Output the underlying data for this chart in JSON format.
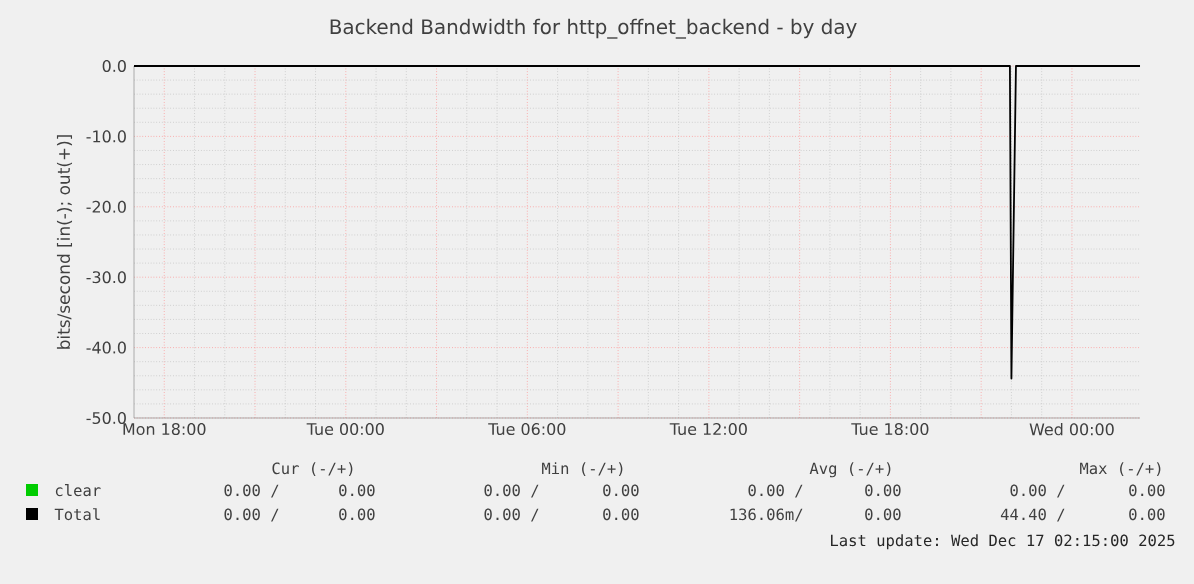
{
  "chart_data": {
    "type": "line",
    "title": "Backend Bandwidth for http_offnet_backend - by day",
    "ylabel": "bits/second [in(-); out(+)]",
    "xlim": [
      "2025-12-15T17:00",
      "2025-12-17T02:15"
    ],
    "ylim": [
      -50,
      0
    ],
    "xticks": [
      {
        "value": "2025-12-15T18:00",
        "label": "Mon 18:00"
      },
      {
        "value": "2025-12-15T21:00",
        "label": null
      },
      {
        "value": "2025-12-16T00:00",
        "label": "Tue 00:00"
      },
      {
        "value": "2025-12-16T03:00",
        "label": null
      },
      {
        "value": "2025-12-16T06:00",
        "label": "Tue 06:00"
      },
      {
        "value": "2025-12-16T09:00",
        "label": null
      },
      {
        "value": "2025-12-16T12:00",
        "label": "Tue 12:00"
      },
      {
        "value": "2025-12-16T15:00",
        "label": null
      },
      {
        "value": "2025-12-16T18:00",
        "label": "Tue 18:00"
      },
      {
        "value": "2025-12-16T21:00",
        "label": null
      },
      {
        "value": "2025-12-17T00:00",
        "label": "Wed 00:00"
      }
    ],
    "yticks": [
      {
        "value": -50,
        "label": "-50.0"
      },
      {
        "value": -40,
        "label": "-40.0"
      },
      {
        "value": -30,
        "label": "-30.0"
      },
      {
        "value": -20,
        "label": "-20.0"
      },
      {
        "value": -10,
        "label": "-10.0"
      },
      {
        "value": 0,
        "label": "0.0"
      }
    ],
    "grid": true,
    "legend": "bottom",
    "marker": "none",
    "line_style": "solid",
    "series": [
      {
        "name": "clear",
        "color": "#00cc00"
      },
      {
        "name": "Total",
        "color": "#000000",
        "x": [
          "2025-12-15T17:00",
          "2025-12-16T21:57",
          "2025-12-16T22:00",
          "2025-12-16T22:09",
          "2025-12-17T02:15"
        ],
        "values": [
          0,
          0,
          -44.4,
          0,
          0
        ]
      }
    ],
    "annotations": [
      "Cur (-/+)",
      "Min (-/+)",
      "Avg (-/+)",
      "Max (-/+)",
      "0.00 /",
      "0.00",
      "0.00 /",
      "0.00",
      "0.00 /",
      "0.00",
      "0.00 /",
      "0.00",
      "0.00 /",
      "0.00",
      "0.00 /",
      "0.00",
      "136.06m/",
      "0.00",
      "44.40 /",
      "0.00",
      "Last update: Wed Dec 17 02:15:00 2025"
    ]
  }
}
